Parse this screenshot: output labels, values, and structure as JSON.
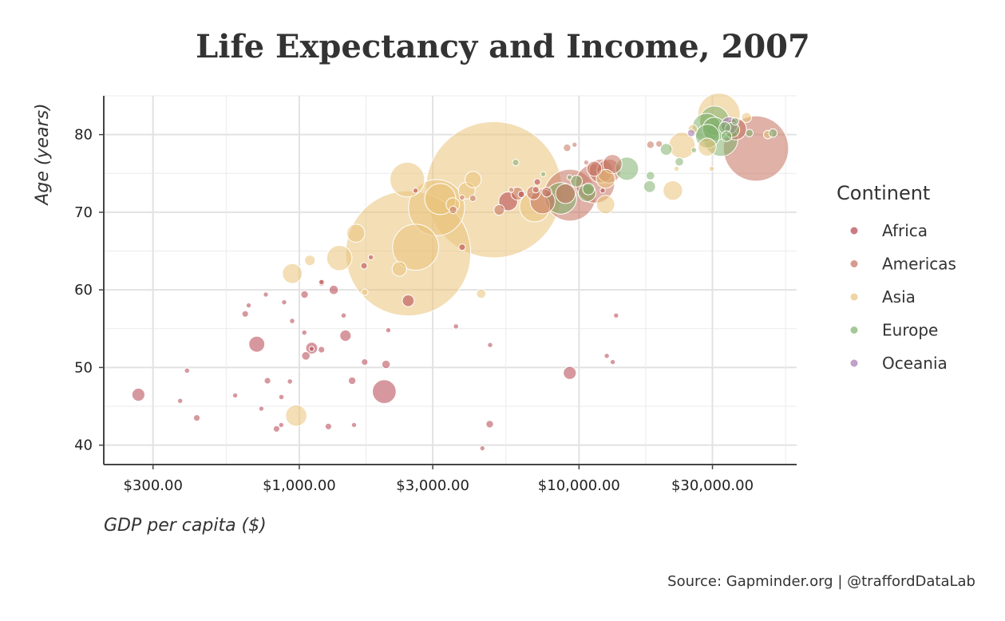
{
  "chart_data": {
    "type": "scatter",
    "title": "Life Expectancy and Income, 2007",
    "xlabel": "GDP per capita ($)",
    "ylabel": "Age (years)",
    "x_scale": "log",
    "xlim": [
      200,
      60000
    ],
    "ylim": [
      37.5,
      85
    ],
    "x_ticks": [
      300,
      1000,
      3000,
      10000,
      30000
    ],
    "x_tick_labels": [
      "$300.00",
      "$1,000.00",
      "$3,000.00",
      "$10,000.00",
      "$30,000.00"
    ],
    "y_ticks": [
      40,
      50,
      60,
      70,
      80
    ],
    "y_tick_labels": [
      "40",
      "50",
      "60",
      "70",
      "80"
    ],
    "grid": true,
    "legend": {
      "title": "Continent",
      "position": "right"
    },
    "colors": {
      "Africa": "#b5444f",
      "Americas": "#c5715f",
      "Asia": "#eac27a",
      "Europe": "#7fb06b",
      "Oceania": "#a678b2"
    },
    "size_variable": "population (millions)",
    "series": [
      {
        "name": "Africa",
        "points": [
          {
            "x": 266,
            "y": 46.5,
            "pop": 12
          },
          {
            "x": 397,
            "y": 49.6,
            "pop": 2
          },
          {
            "x": 375,
            "y": 45.7,
            "pop": 1
          },
          {
            "x": 430,
            "y": 43.5,
            "pop": 3
          },
          {
            "x": 590,
            "y": 46.4,
            "pop": 1
          },
          {
            "x": 641,
            "y": 56.9,
            "pop": 3
          },
          {
            "x": 659,
            "y": 58.0,
            "pop": 1
          },
          {
            "x": 705,
            "y": 53.0,
            "pop": 18
          },
          {
            "x": 732,
            "y": 44.7,
            "pop": 1
          },
          {
            "x": 759,
            "y": 59.4,
            "pop": 1
          },
          {
            "x": 770,
            "y": 48.3,
            "pop": 3
          },
          {
            "x": 829,
            "y": 42.1,
            "pop": 3
          },
          {
            "x": 862,
            "y": 42.6,
            "pop": 1
          },
          {
            "x": 863,
            "y": 46.2,
            "pop": 2
          },
          {
            "x": 883,
            "y": 58.4,
            "pop": 1
          },
          {
            "x": 926,
            "y": 48.2,
            "pop": 2
          },
          {
            "x": 943,
            "y": 56.0,
            "pop": 2
          },
          {
            "x": 1042,
            "y": 54.5,
            "pop": 2
          },
          {
            "x": 1044,
            "y": 59.4,
            "pop": 4
          },
          {
            "x": 1056,
            "y": 51.5,
            "pop": 5
          },
          {
            "x": 1108,
            "y": 52.5,
            "pop": 10
          },
          {
            "x": 1107,
            "y": 52.4,
            "pop": 1
          },
          {
            "x": 1200,
            "y": 52.3,
            "pop": 3
          },
          {
            "x": 1201,
            "y": 61.0,
            "pop": 2
          },
          {
            "x": 1271,
            "y": 42.4,
            "pop": 3
          },
          {
            "x": 1328,
            "y": 60.0,
            "pop": 6
          },
          {
            "x": 1441,
            "y": 56.7,
            "pop": 2
          },
          {
            "x": 1463,
            "y": 54.1,
            "pop": 9
          },
          {
            "x": 1545,
            "y": 48.3,
            "pop": 4
          },
          {
            "x": 1569,
            "y": 42.6,
            "pop": 1
          },
          {
            "x": 1713,
            "y": 50.7,
            "pop": 3
          },
          {
            "x": 1704,
            "y": 63.1,
            "pop": 3
          },
          {
            "x": 1803,
            "y": 64.2,
            "pop": 1
          },
          {
            "x": 2013,
            "y": 46.9,
            "pop": 40
          },
          {
            "x": 2042,
            "y": 50.4,
            "pop": 5
          },
          {
            "x": 2082,
            "y": 54.8,
            "pop": 1
          },
          {
            "x": 2452,
            "y": 58.6,
            "pop": 10
          },
          {
            "x": 2602,
            "y": 72.8,
            "pop": 1
          },
          {
            "x": 3633,
            "y": 55.3,
            "pop": 2
          },
          {
            "x": 3820,
            "y": 65.5,
            "pop": 3
          },
          {
            "x": 4513,
            "y": 39.6,
            "pop": 1
          },
          {
            "x": 4797,
            "y": 42.7,
            "pop": 4
          },
          {
            "x": 4811,
            "y": 52.9,
            "pop": 1
          },
          {
            "x": 5581,
            "y": 71.4,
            "pop": 25
          },
          {
            "x": 6223,
            "y": 72.3,
            "pop": 3
          },
          {
            "x": 7093,
            "y": 73.9,
            "pop": 3
          },
          {
            "x": 9270,
            "y": 49.3,
            "pop": 12
          },
          {
            "x": 12154,
            "y": 72.8,
            "pop": 1
          },
          {
            "x": 12570,
            "y": 51.5,
            "pop": 1
          },
          {
            "x": 13206,
            "y": 50.7,
            "pop": 1
          },
          {
            "x": 13570,
            "y": 56.7,
            "pop": 1
          }
        ]
      },
      {
        "name": "Americas",
        "points": [
          {
            "x": 1202,
            "y": 60.9,
            "pop": 3
          },
          {
            "x": 3548,
            "y": 70.3,
            "pop": 4
          },
          {
            "x": 3820,
            "y": 71.9,
            "pop": 2
          },
          {
            "x": 4173,
            "y": 71.8,
            "pop": 3
          },
          {
            "x": 5186,
            "y": 70.3,
            "pop": 8
          },
          {
            "x": 5728,
            "y": 72.9,
            "pop": 1
          },
          {
            "x": 6025,
            "y": 72.4,
            "pop": 12
          },
          {
            "x": 6873,
            "y": 72.5,
            "pop": 13
          },
          {
            "x": 7007,
            "y": 72.9,
            "pop": 3
          },
          {
            "x": 7408,
            "y": 71.4,
            "pop": 44
          },
          {
            "x": 7670,
            "y": 72.6,
            "pop": 7
          },
          {
            "x": 8948,
            "y": 72.4,
            "pop": 28
          },
          {
            "x": 9065,
            "y": 78.3,
            "pop": 4
          },
          {
            "x": 9645,
            "y": 78.7,
            "pop": 1
          },
          {
            "x": 10611,
            "y": 76.4,
            "pop": 1
          },
          {
            "x": 11416,
            "y": 73.7,
            "pop": 109
          },
          {
            "x": 11977,
            "y": 75.3,
            "pop": 40
          },
          {
            "x": 12779,
            "y": 75.3,
            "pop": 40
          },
          {
            "x": 13172,
            "y": 76.2,
            "pop": 26
          },
          {
            "x": 9287,
            "y": 72.2,
            "pop": 190
          },
          {
            "x": 11344,
            "y": 75.6,
            "pop": 16
          },
          {
            "x": 18009,
            "y": 78.7,
            "pop": 4
          },
          {
            "x": 19329,
            "y": 78.8,
            "pop": 3
          },
          {
            "x": 36319,
            "y": 80.7,
            "pop": 33
          },
          {
            "x": 42952,
            "y": 78.2,
            "pop": 301
          }
        ]
      },
      {
        "name": "Asia",
        "points": [
          {
            "x": 975,
            "y": 43.8,
            "pop": 32
          },
          {
            "x": 944,
            "y": 62.1,
            "pop": 28
          },
          {
            "x": 1091,
            "y": 63.8,
            "pop": 8
          },
          {
            "x": 1391,
            "y": 64.1,
            "pop": 45
          },
          {
            "x": 1593,
            "y": 67.3,
            "pop": 23
          },
          {
            "x": 1714,
            "y": 59.7,
            "pop": 3
          },
          {
            "x": 2452,
            "y": 64.7,
            "pop": 1110
          },
          {
            "x": 2605,
            "y": 65.5,
            "pop": 150
          },
          {
            "x": 2280,
            "y": 62.7,
            "pop": 15
          },
          {
            "x": 2432,
            "y": 74.2,
            "pop": 85
          },
          {
            "x": 3095,
            "y": 70.6,
            "pop": 223
          },
          {
            "x": 3190,
            "y": 71.7,
            "pop": 69
          },
          {
            "x": 3541,
            "y": 71.0,
            "pop": 13
          },
          {
            "x": 4471,
            "y": 59.5,
            "pop": 6
          },
          {
            "x": 3970,
            "y": 72.8,
            "pop": 20
          },
          {
            "x": 4184,
            "y": 74.2,
            "pop": 19
          },
          {
            "x": 4959,
            "y": 72.9,
            "pop": 1319
          },
          {
            "x": 6944,
            "y": 70.7,
            "pop": 65
          },
          {
            "x": 12452,
            "y": 71.0,
            "pop": 24
          },
          {
            "x": 12451,
            "y": 74.3,
            "pop": 25
          },
          {
            "x": 21655,
            "y": 72.8,
            "pop": 27
          },
          {
            "x": 22316,
            "y": 75.6,
            "pop": 1
          },
          {
            "x": 23348,
            "y": 78.6,
            "pop": 49
          },
          {
            "x": 25523,
            "y": 80.7,
            "pop": 6
          },
          {
            "x": 28718,
            "y": 78.4,
            "pop": 23
          },
          {
            "x": 29796,
            "y": 75.6,
            "pop": 1
          },
          {
            "x": 31656,
            "y": 82.6,
            "pop": 127
          },
          {
            "x": 39725,
            "y": 82.2,
            "pop": 7
          },
          {
            "x": 47306,
            "y": 80.0,
            "pop": 5
          }
        ]
      },
      {
        "name": "Europe",
        "points": [
          {
            "x": 5937,
            "y": 76.4,
            "pop": 3
          },
          {
            "x": 7446,
            "y": 74.9,
            "pop": 1
          },
          {
            "x": 8605,
            "y": 71.8,
            "pop": 71
          },
          {
            "x": 9253,
            "y": 74.5,
            "pop": 1
          },
          {
            "x": 9787,
            "y": 74.0,
            "pop": 10
          },
          {
            "x": 10681,
            "y": 72.5,
            "pop": 22
          },
          {
            "x": 10808,
            "y": 73.0,
            "pop": 10
          },
          {
            "x": 14843,
            "y": 75.6,
            "pop": 38
          },
          {
            "x": 18008,
            "y": 74.7,
            "pop": 5
          },
          {
            "x": 20510,
            "y": 78.1,
            "pop": 10
          },
          {
            "x": 17890,
            "y": 73.3,
            "pop": 10
          },
          {
            "x": 22833,
            "y": 76.5,
            "pop": 5
          },
          {
            "x": 25768,
            "y": 78.0,
            "pop": 2
          },
          {
            "x": 28569,
            "y": 80.9,
            "pop": 58
          },
          {
            "x": 30470,
            "y": 80.7,
            "pop": 40
          },
          {
            "x": 28821,
            "y": 79.8,
            "pop": 40
          },
          {
            "x": 30486,
            "y": 81.8,
            "pop": 61
          },
          {
            "x": 32170,
            "y": 79.4,
            "pop": 82
          },
          {
            "x": 33207,
            "y": 80.9,
            "pop": 10
          },
          {
            "x": 33692,
            "y": 79.8,
            "pop": 8
          },
          {
            "x": 36126,
            "y": 81.7,
            "pop": 4
          },
          {
            "x": 35278,
            "y": 80.6,
            "pop": 16
          },
          {
            "x": 40676,
            "y": 80.2,
            "pop": 4
          },
          {
            "x": 49357,
            "y": 80.2,
            "pop": 5
          }
        ]
      },
      {
        "name": "Oceania",
        "points": [
          {
            "x": 25185,
            "y": 80.2,
            "pop": 4
          },
          {
            "x": 34435,
            "y": 81.2,
            "pop": 20
          }
        ]
      }
    ]
  },
  "caption": "Source: Gapminder.org  |  @traffordDataLab"
}
